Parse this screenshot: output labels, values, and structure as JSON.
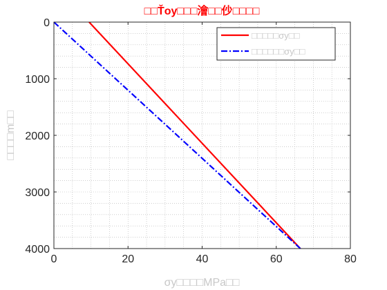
{
  "chart_data": {
    "type": "line",
    "title": "□□Ťoy□□□澮□□仯□□□□",
    "title_color": "#ff0000",
    "xlabel": "σy□□□□MPa□□",
    "ylabel": "□□□□m□□",
    "xlim": [
      0,
      80
    ],
    "ylim": [
      0,
      4000
    ],
    "y_reversed": true,
    "x_ticks": [
      "0",
      "20",
      "40",
      "60",
      "80"
    ],
    "y_ticks": [
      "0",
      "1000",
      "2000",
      "3000",
      "4000"
    ],
    "grid": "on (dotted)",
    "legend_position": "top-right",
    "series": [
      {
        "name": "□□□□□σy□□",
        "color": "#ff0000",
        "style": "solid",
        "x": [
          9.5,
          66.5
        ],
        "y": [
          0,
          4000
        ]
      },
      {
        "name": "□□□□□□σy□□",
        "color": "#0000ff",
        "style": "dash-dot",
        "x": [
          0,
          66.5
        ],
        "y": [
          0,
          4000
        ]
      }
    ]
  }
}
